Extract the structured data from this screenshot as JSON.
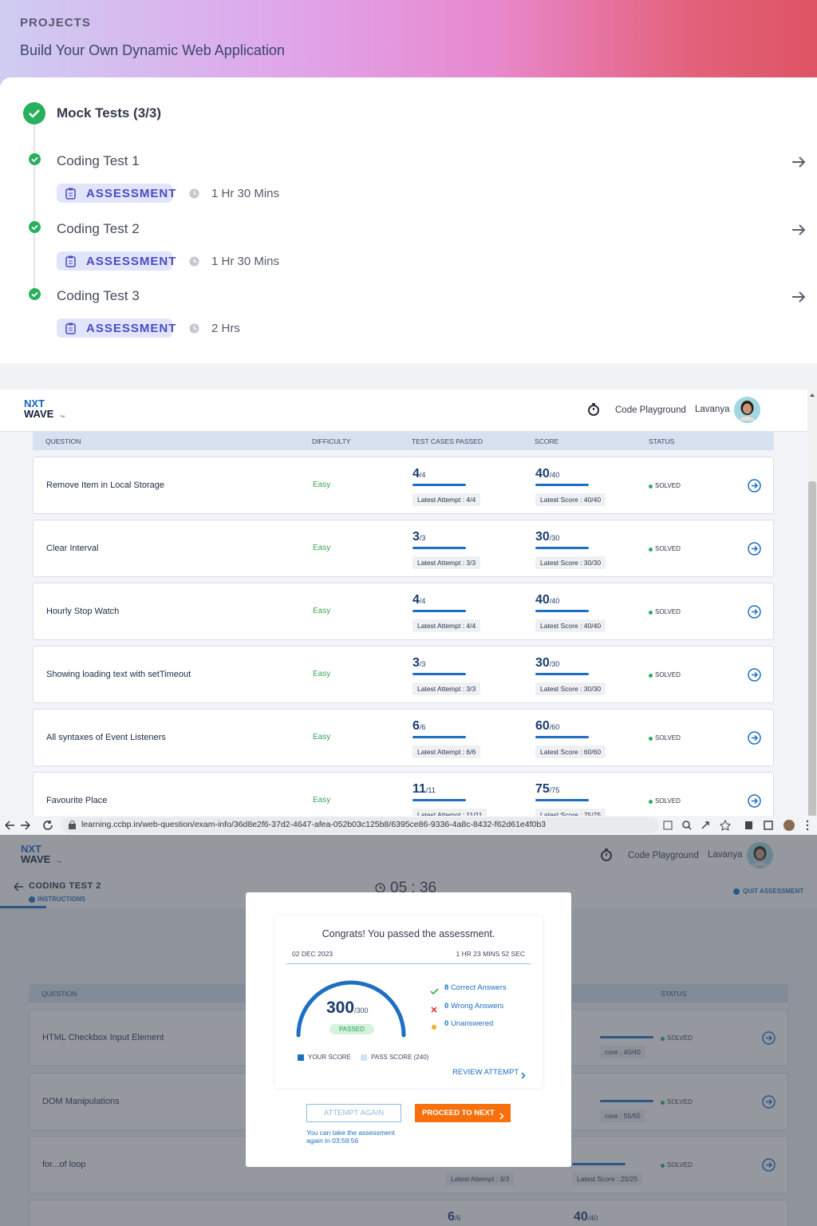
{
  "projects": {
    "label": "PROJECTS",
    "title": "Build Your Own Dynamic Web Application",
    "section": "Mock Tests (3/3)",
    "tests": [
      {
        "name": "Coding Test 1",
        "tag": "ASSESSMENT",
        "duration": "1 Hr 30 Mins"
      },
      {
        "name": "Coding Test 2",
        "tag": "ASSESSMENT",
        "duration": "1 Hr 30 Mins"
      },
      {
        "name": "Coding Test 3",
        "tag": "ASSESSMENT",
        "duration": "2 Hrs"
      }
    ]
  },
  "app": {
    "logo_top": "NXT",
    "logo_bottom": "WAVE",
    "logo_tm": "TM",
    "playground": "Code Playground",
    "user": "Lavanya",
    "columns": [
      "QUESTION",
      "DIFFICULTY",
      "TEST CASES PASSED",
      "SCORE",
      "STATUS"
    ],
    "rows": [
      {
        "question": "Remove Item in Local Storage",
        "difficulty": "Easy",
        "tests_passed": "4",
        "tests_total": "/4",
        "tests_latest": "Latest Attempt : 4/4",
        "score": "40",
        "score_total": "/40",
        "score_latest": "Latest Score : 40/40",
        "status": "SOLVED"
      },
      {
        "question": "Clear Interval",
        "difficulty": "Easy",
        "tests_passed": "3",
        "tests_total": "/3",
        "tests_latest": "Latest Attempt : 3/3",
        "score": "30",
        "score_total": "/30",
        "score_latest": "Latest Score : 30/30",
        "status": "SOLVED"
      },
      {
        "question": "Hourly Stop Watch",
        "difficulty": "Easy",
        "tests_passed": "4",
        "tests_total": "/4",
        "tests_latest": "Latest Attempt : 4/4",
        "score": "40",
        "score_total": "/40",
        "score_latest": "Latest Score : 40/40",
        "status": "SOLVED"
      },
      {
        "question": "Showing loading text with setTimeout",
        "difficulty": "Easy",
        "tests_passed": "3",
        "tests_total": "/3",
        "tests_latest": "Latest Attempt : 3/3",
        "score": "30",
        "score_total": "/30",
        "score_latest": "Latest Score : 30/30",
        "status": "SOLVED"
      },
      {
        "question": "All syntaxes of Event Listeners",
        "difficulty": "Easy",
        "tests_passed": "6",
        "tests_total": "/6",
        "tests_latest": "Latest Attempt : 6/6",
        "score": "60",
        "score_total": "/60",
        "score_latest": "Latest Score : 60/60",
        "status": "SOLVED"
      },
      {
        "question": "Favourite Place",
        "difficulty": "Easy",
        "tests_passed": "11",
        "tests_total": "/11",
        "tests_latest": "Latest Attempt : 11/11",
        "score": "75",
        "score_total": "/75",
        "score_latest": "Latest Score : 75/75",
        "status": "SOLVED"
      }
    ]
  },
  "browser": {
    "url": "learning.ccbp.in/web-question/exam-info/36d8e2f6-37d2-4647-afea-052b03c125b8/6395ce86-9336-4a8c-8432-f62d61e4f0b3"
  },
  "exam": {
    "logo_top": "NXT",
    "logo_bottom": "WAVE",
    "logo_tm": "TM",
    "playground": "Code Playground",
    "user": "Lavanya",
    "test_name": "CODING TEST 2",
    "tab": "INSTRUCTIONS",
    "timer": "05 : 36",
    "quit": "QUIT ASSESSMENT",
    "columns": [
      "QUESTION",
      "STATUS"
    ],
    "rows": [
      {
        "question": "HTML Checkbox Input Element",
        "status": "SOLVED",
        "score_latest": "core : 40/40"
      },
      {
        "question": "DOM Manipulations",
        "status": "SOLVED",
        "score_latest": "core : 55/55"
      },
      {
        "question": "for...of loop",
        "status": "SOLVED",
        "tests_latest": "Latest Attempt : 3/3",
        "score_latest": "Latest Score : 25/25"
      },
      {
        "tests_passed": "6",
        "tests_total": "/6",
        "score": "40",
        "score_total": "/40"
      }
    ]
  },
  "modal": {
    "message": "Congrats! You passed the assessment.",
    "date": "02 DEC 2023",
    "time_taken": "1 HR 23 MINS 52 SEC",
    "score": "300",
    "score_total": "/300",
    "result": "PASSED",
    "stats": [
      {
        "count": "8",
        "label": "Correct Answers"
      },
      {
        "count": "0",
        "label": "Wrong Answers"
      },
      {
        "count": "0",
        "label": "Unanswered"
      }
    ],
    "legend": [
      "YOUR SCORE",
      "PASS SCORE (240)"
    ],
    "review": "REVIEW ATTEMPT",
    "retry": "ATTEMPT AGAIN",
    "proceed": "PROCEED TO NEXT",
    "retry_note": "You can take the assessment again in 03:59:56"
  }
}
